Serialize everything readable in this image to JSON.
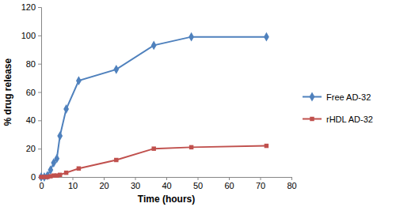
{
  "chart_data": {
    "type": "line",
    "x_label": "Time (hours)",
    "y_label": "% drug release",
    "x": [
      0,
      1,
      2,
      3,
      4,
      5,
      6,
      8,
      12,
      24,
      36,
      48,
      72
    ],
    "series": [
      {
        "name": "Free AD-32",
        "color": "#4f81bd",
        "marker": "diamond",
        "line_style": "solid",
        "values": [
          0,
          0,
          1,
          5,
          10,
          13,
          29,
          48,
          68,
          76,
          93,
          99,
          99
        ]
      },
      {
        "name": "rHDL AD-32",
        "color": "#c0504d",
        "marker": "square",
        "line_style": "solid",
        "values": [
          0,
          0,
          0,
          0.5,
          1,
          1,
          1.5,
          3,
          6,
          12,
          20,
          21,
          22
        ]
      }
    ],
    "xlim": [
      0,
      80
    ],
    "xticks": [
      0,
      10,
      20,
      30,
      40,
      50,
      60,
      70,
      80
    ],
    "ylim": [
      0,
      120
    ],
    "yticks": [
      0,
      20,
      40,
      60,
      80,
      100,
      120
    ],
    "grid": false,
    "legend": "right"
  }
}
